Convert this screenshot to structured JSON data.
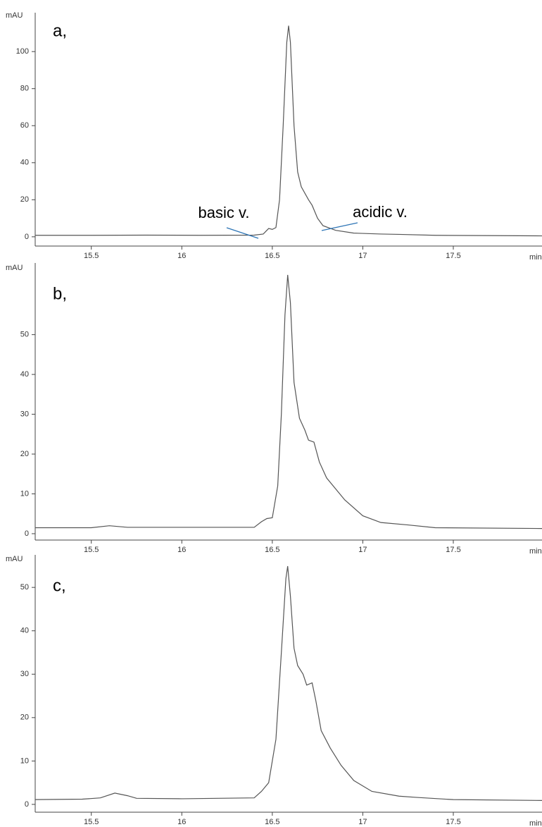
{
  "chart_data": [
    {
      "type": "line",
      "label": "a,",
      "y_label": "mAU",
      "x_label": "min",
      "color": "#555555",
      "annotations": [
        "basic v.",
        "acidic v."
      ],
      "xlim": [
        15.19,
        17.99
      ],
      "xticks": [
        15.5,
        16,
        16.5,
        17,
        17.5
      ],
      "ylim": [
        -5,
        121
      ],
      "yticks": [
        0,
        20,
        40,
        60,
        80,
        100
      ],
      "x": [
        15.19,
        15.5,
        15.8,
        16.1,
        16.4,
        16.45,
        16.48,
        16.5,
        16.52,
        16.54,
        16.56,
        16.58,
        16.59,
        16.6,
        16.62,
        16.64,
        16.66,
        16.7,
        16.72,
        16.75,
        16.78,
        16.85,
        16.95,
        17.1,
        17.2,
        17.4,
        17.99
      ],
      "values": [
        0.8,
        0.8,
        0.9,
        0.8,
        0.9,
        1.5,
        4.5,
        4,
        5,
        20,
        60,
        105,
        114,
        105,
        60,
        35,
        27,
        20,
        17,
        10,
        6,
        3.5,
        2,
        1.5,
        1.3,
        0.8,
        0.5
      ]
    },
    {
      "type": "line",
      "label": "b,",
      "y_label": "mAU",
      "x_label": "min",
      "color": "#555555",
      "xlim": [
        15.19,
        17.99
      ],
      "xticks": [
        15.5,
        16,
        16.5,
        17,
        17.5
      ],
      "ylim": [
        -1.6,
        68
      ],
      "yticks": [
        0,
        10,
        20,
        30,
        40,
        50
      ],
      "x": [
        15.19,
        15.5,
        15.6,
        15.7,
        16.0,
        16.4,
        16.44,
        16.47,
        16.5,
        16.53,
        16.55,
        16.57,
        16.585,
        16.6,
        16.62,
        16.65,
        16.68,
        16.7,
        16.73,
        16.76,
        16.8,
        16.9,
        17.0,
        17.1,
        17.25,
        17.4,
        17.99
      ],
      "values": [
        1.5,
        1.5,
        2,
        1.6,
        1.6,
        1.6,
        3,
        3.8,
        4,
        12,
        30,
        55,
        65,
        58,
        38,
        29,
        26,
        23.5,
        23,
        18,
        14,
        8.5,
        4.5,
        2.8,
        2.2,
        1.5,
        1.3
      ]
    },
    {
      "type": "line",
      "label": "c,",
      "y_label": "mAU",
      "x_label": "min",
      "color": "#555555",
      "xlim": [
        15.19,
        17.99
      ],
      "xticks": [
        15.5,
        16,
        16.5,
        17,
        17.5
      ],
      "ylim": [
        -1.8,
        57.5
      ],
      "yticks": [
        0,
        10,
        20,
        30,
        40,
        50
      ],
      "x": [
        15.19,
        15.45,
        15.55,
        15.63,
        15.7,
        15.75,
        16.0,
        16.4,
        16.44,
        16.48,
        16.52,
        16.55,
        16.575,
        16.585,
        16.6,
        16.62,
        16.64,
        16.67,
        16.69,
        16.72,
        16.74,
        16.77,
        16.82,
        16.88,
        16.95,
        17.05,
        17.2,
        17.3,
        17.5,
        17.99
      ],
      "values": [
        1.1,
        1.2,
        1.5,
        2.6,
        2,
        1.4,
        1.3,
        1.5,
        3,
        5,
        15,
        35,
        52,
        54.9,
        48,
        36,
        32,
        30,
        27.5,
        28,
        24,
        17,
        13,
        9,
        5.5,
        3,
        1.9,
        1.6,
        1.1,
        0.9
      ]
    }
  ]
}
